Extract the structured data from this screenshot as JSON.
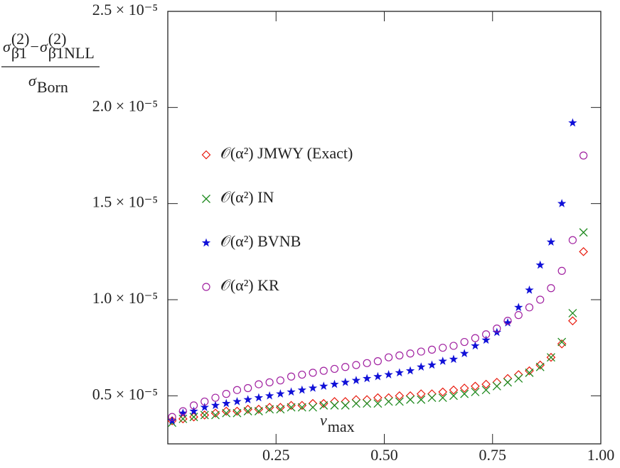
{
  "chart_data": {
    "type": "scatter",
    "y_label": {
      "num": [
        {
          "base": "σ",
          "sup": "(2)",
          "sub": "β̄1"
        },
        {
          "op": "−"
        },
        {
          "base": "σ",
          "sup": "(2)",
          "sub": "β̄1NLL"
        }
      ],
      "den": {
        "base": "σ",
        "sub": "Born"
      }
    },
    "x_label": {
      "base": "v",
      "sub": "max"
    },
    "xlim": [
      0,
      1.0
    ],
    "ylim": [
      2.5e-06,
      2.5e-05
    ],
    "xticks": [
      0.25,
      {
        "value": 0.5,
        "label": "0.50"
      },
      0.75,
      {
        "value": 1.0,
        "label": "1.00"
      }
    ],
    "yticks": [
      {
        "value": 5e-06,
        "label": "0.5 × 10⁻⁵"
      },
      {
        "value": 1e-05,
        "label": "1.0 × 10⁻⁵"
      },
      {
        "value": 1.5e-05,
        "label": "1.5 × 10⁻⁵"
      },
      {
        "value": 2e-05,
        "label": "2.0 × 10⁻⁵"
      },
      {
        "value": 2.5e-05,
        "label": "2.5 × 10⁻⁵"
      }
    ],
    "x": [
      0.01,
      0.035,
      0.06,
      0.085,
      0.11,
      0.135,
      0.16,
      0.185,
      0.21,
      0.235,
      0.26,
      0.285,
      0.31,
      0.335,
      0.36,
      0.385,
      0.41,
      0.435,
      0.46,
      0.485,
      0.51,
      0.535,
      0.56,
      0.585,
      0.61,
      0.635,
      0.66,
      0.685,
      0.71,
      0.735,
      0.76,
      0.785,
      0.81,
      0.835,
      0.86,
      0.885,
      0.91,
      0.935,
      0.96
    ],
    "series": [
      {
        "name": "𝒪(α²) JMWY (Exact)",
        "color": "#e8190c",
        "marker": "diamond",
        "values": [
          3.7e-06,
          3.8e-06,
          3.9e-06,
          4e-06,
          4.1e-06,
          4.2e-06,
          4.2e-06,
          4.3e-06,
          4.3e-06,
          4.4e-06,
          4.4e-06,
          4.5e-06,
          4.5e-06,
          4.6e-06,
          4.6e-06,
          4.7e-06,
          4.7e-06,
          4.8e-06,
          4.8e-06,
          4.9e-06,
          4.9e-06,
          5e-06,
          5e-06,
          5.1e-06,
          5.1e-06,
          5.2e-06,
          5.3e-06,
          5.4e-06,
          5.5e-06,
          5.6e-06,
          5.7e-06,
          5.9e-06,
          6.1e-06,
          6.3e-06,
          6.6e-06,
          7e-06,
          7.7e-06,
          8.9e-06,
          1.25e-05
        ]
      },
      {
        "name": "𝒪(α²) IN",
        "color": "#1f8a1f",
        "marker": "cross",
        "values": [
          3.6e-06,
          3.8e-06,
          3.9e-06,
          4e-06,
          4e-06,
          4.1e-06,
          4.1e-06,
          4.2e-06,
          4.2e-06,
          4.3e-06,
          4.3e-06,
          4.4e-06,
          4.4e-06,
          4.4e-06,
          4.5e-06,
          4.5e-06,
          4.5e-06,
          4.6e-06,
          4.6e-06,
          4.6e-06,
          4.7e-06,
          4.7e-06,
          4.8e-06,
          4.8e-06,
          4.9e-06,
          4.9e-06,
          5e-06,
          5.1e-06,
          5.2e-06,
          5.3e-06,
          5.5e-06,
          5.7e-06,
          5.9e-06,
          6.2e-06,
          6.5e-06,
          7e-06,
          7.8e-06,
          9.3e-06,
          1.35e-05
        ]
      },
      {
        "name": "𝒪(α²) BVNB",
        "color": "#1010d8",
        "marker": "star",
        "values": [
          3.7e-06,
          4.1e-06,
          4.2e-06,
          4.4e-06,
          4.5e-06,
          4.6e-06,
          4.7e-06,
          4.8e-06,
          4.9e-06,
          5e-06,
          5.1e-06,
          5.2e-06,
          5.3e-06,
          5.4e-06,
          5.5e-06,
          5.6e-06,
          5.7e-06,
          5.8e-06,
          5.9e-06,
          6e-06,
          6.1e-06,
          6.2e-06,
          6.3e-06,
          6.5e-06,
          6.6e-06,
          6.8e-06,
          6.9e-06,
          7.2e-06,
          7.6e-06,
          7.9e-06,
          8.3e-06,
          8.8e-06,
          9.6e-06,
          1.05e-05,
          1.18e-05,
          1.3e-05,
          1.5e-05,
          1.92e-05,
          null
        ]
      },
      {
        "name": "𝒪(α²) KR",
        "color": "#a020a0",
        "marker": "circle",
        "values": [
          3.9e-06,
          4.2e-06,
          4.5e-06,
          4.7e-06,
          4.9e-06,
          5.1e-06,
          5.3e-06,
          5.4e-06,
          5.6e-06,
          5.7e-06,
          5.8e-06,
          6e-06,
          6.1e-06,
          6.2e-06,
          6.3e-06,
          6.4e-06,
          6.5e-06,
          6.6e-06,
          6.7e-06,
          6.8e-06,
          7e-06,
          7.1e-06,
          7.2e-06,
          7.3e-06,
          7.4e-06,
          7.5e-06,
          7.6e-06,
          7.8e-06,
          8e-06,
          8.2e-06,
          8.5e-06,
          8.9e-06,
          9.2e-06,
          9.6e-06,
          1e-05,
          1.06e-05,
          1.15e-05,
          1.31e-05,
          1.75e-05
        ]
      }
    ]
  }
}
